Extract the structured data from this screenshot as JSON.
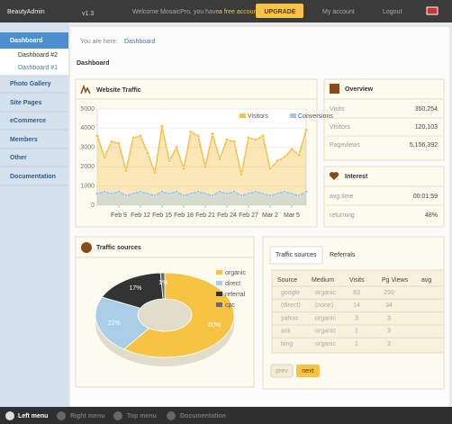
{
  "header": {
    "brand": "BeautyAdmin",
    "version": "v1.3",
    "welcome": "Welcome MosaicPro, you have",
    "account_type": "a free account",
    "upgrade": "UPGRADE",
    "my_account": "My account",
    "logout": "Logout"
  },
  "sidebar": {
    "items": [
      "Dashboard",
      "Photo Gallery",
      "Site Pages",
      "eCommerce",
      "Members",
      "Other",
      "Documentation"
    ],
    "subitems": [
      "Dashboard #2",
      "Dashboard #1"
    ]
  },
  "breadcrumb": {
    "prefix": "You are here:",
    "current": "Dashboard"
  },
  "page_title": "Dashboard",
  "overview": {
    "title": "Overview",
    "rows": [
      [
        "Visits",
        "350,254"
      ],
      [
        "Visitors",
        "120,103"
      ],
      [
        "Pageviews",
        "5,156,392"
      ]
    ]
  },
  "interest": {
    "title": "Interest",
    "rows": [
      [
        "avg.time",
        "00:01:59"
      ],
      [
        "returning",
        "48%"
      ]
    ]
  },
  "chart_data": [
    {
      "type": "line",
      "title": "Website Traffic",
      "grid": true,
      "categories": [
        null,
        null,
        null,
        "Feb 9",
        null,
        null,
        "Feb 12",
        null,
        null,
        "Feb 15",
        null,
        null,
        "Feb 18",
        null,
        null,
        "Feb 21",
        null,
        null,
        "Feb 24",
        null,
        null,
        "Feb 27",
        null,
        null,
        "Mar 2",
        null,
        null,
        "Mar 5",
        null,
        null
      ],
      "series": [
        {
          "name": "Visitors",
          "color": "#f5c14a",
          "values": [
            3600,
            2500,
            3300,
            3200,
            1800,
            3500,
            3600,
            2700,
            1700,
            4100,
            2300,
            3000,
            1900,
            3800,
            3600,
            2000,
            3700,
            2400,
            3400,
            3300,
            1600,
            3500,
            3400,
            3600,
            1900,
            2300,
            2500,
            2900,
            2600,
            3900
          ]
        },
        {
          "name": "Conversions",
          "color": "#9ec8e8",
          "values": [
            600,
            700,
            600,
            700,
            500,
            600,
            700,
            600,
            500,
            700,
            600,
            700,
            500,
            600,
            700,
            600,
            500,
            700,
            600,
            700,
            500,
            600,
            700,
            600,
            500,
            600,
            700,
            600,
            500,
            700
          ]
        }
      ],
      "ylim": [
        0,
        5000
      ],
      "yticks": [
        0,
        1000,
        2000,
        3000,
        4000,
        5000
      ]
    },
    {
      "type": "pie",
      "title": "Traffic sources",
      "categories": [
        "organic",
        "direct",
        "referral",
        "cpc"
      ],
      "values": [
        60,
        22,
        17,
        1
      ],
      "value_labels": [
        "60%",
        "22%",
        "17%",
        "1%"
      ],
      "colors": [
        "#f6c343",
        "#aacde8",
        "#333333",
        "#6a6a6a"
      ]
    }
  ],
  "table": {
    "tabs": [
      "Traffic sources",
      "Referrals"
    ],
    "header": [
      "Source",
      "Medium",
      "Visits",
      "Pg Views",
      "avg"
    ],
    "rows": [
      [
        "google",
        "organic",
        "83",
        "299"
      ],
      [
        "(direct)",
        "(none)",
        "14",
        "34"
      ],
      [
        "yahoo",
        "organic",
        "3",
        "3"
      ],
      [
        "ask",
        "organic",
        "1",
        "3"
      ],
      [
        "bing",
        "organic",
        "1",
        "3"
      ]
    ],
    "prev": "prev",
    "next": "next"
  },
  "bottom_bar": [
    "Left menu",
    "Right menu",
    "Top menu",
    "Documentation"
  ]
}
